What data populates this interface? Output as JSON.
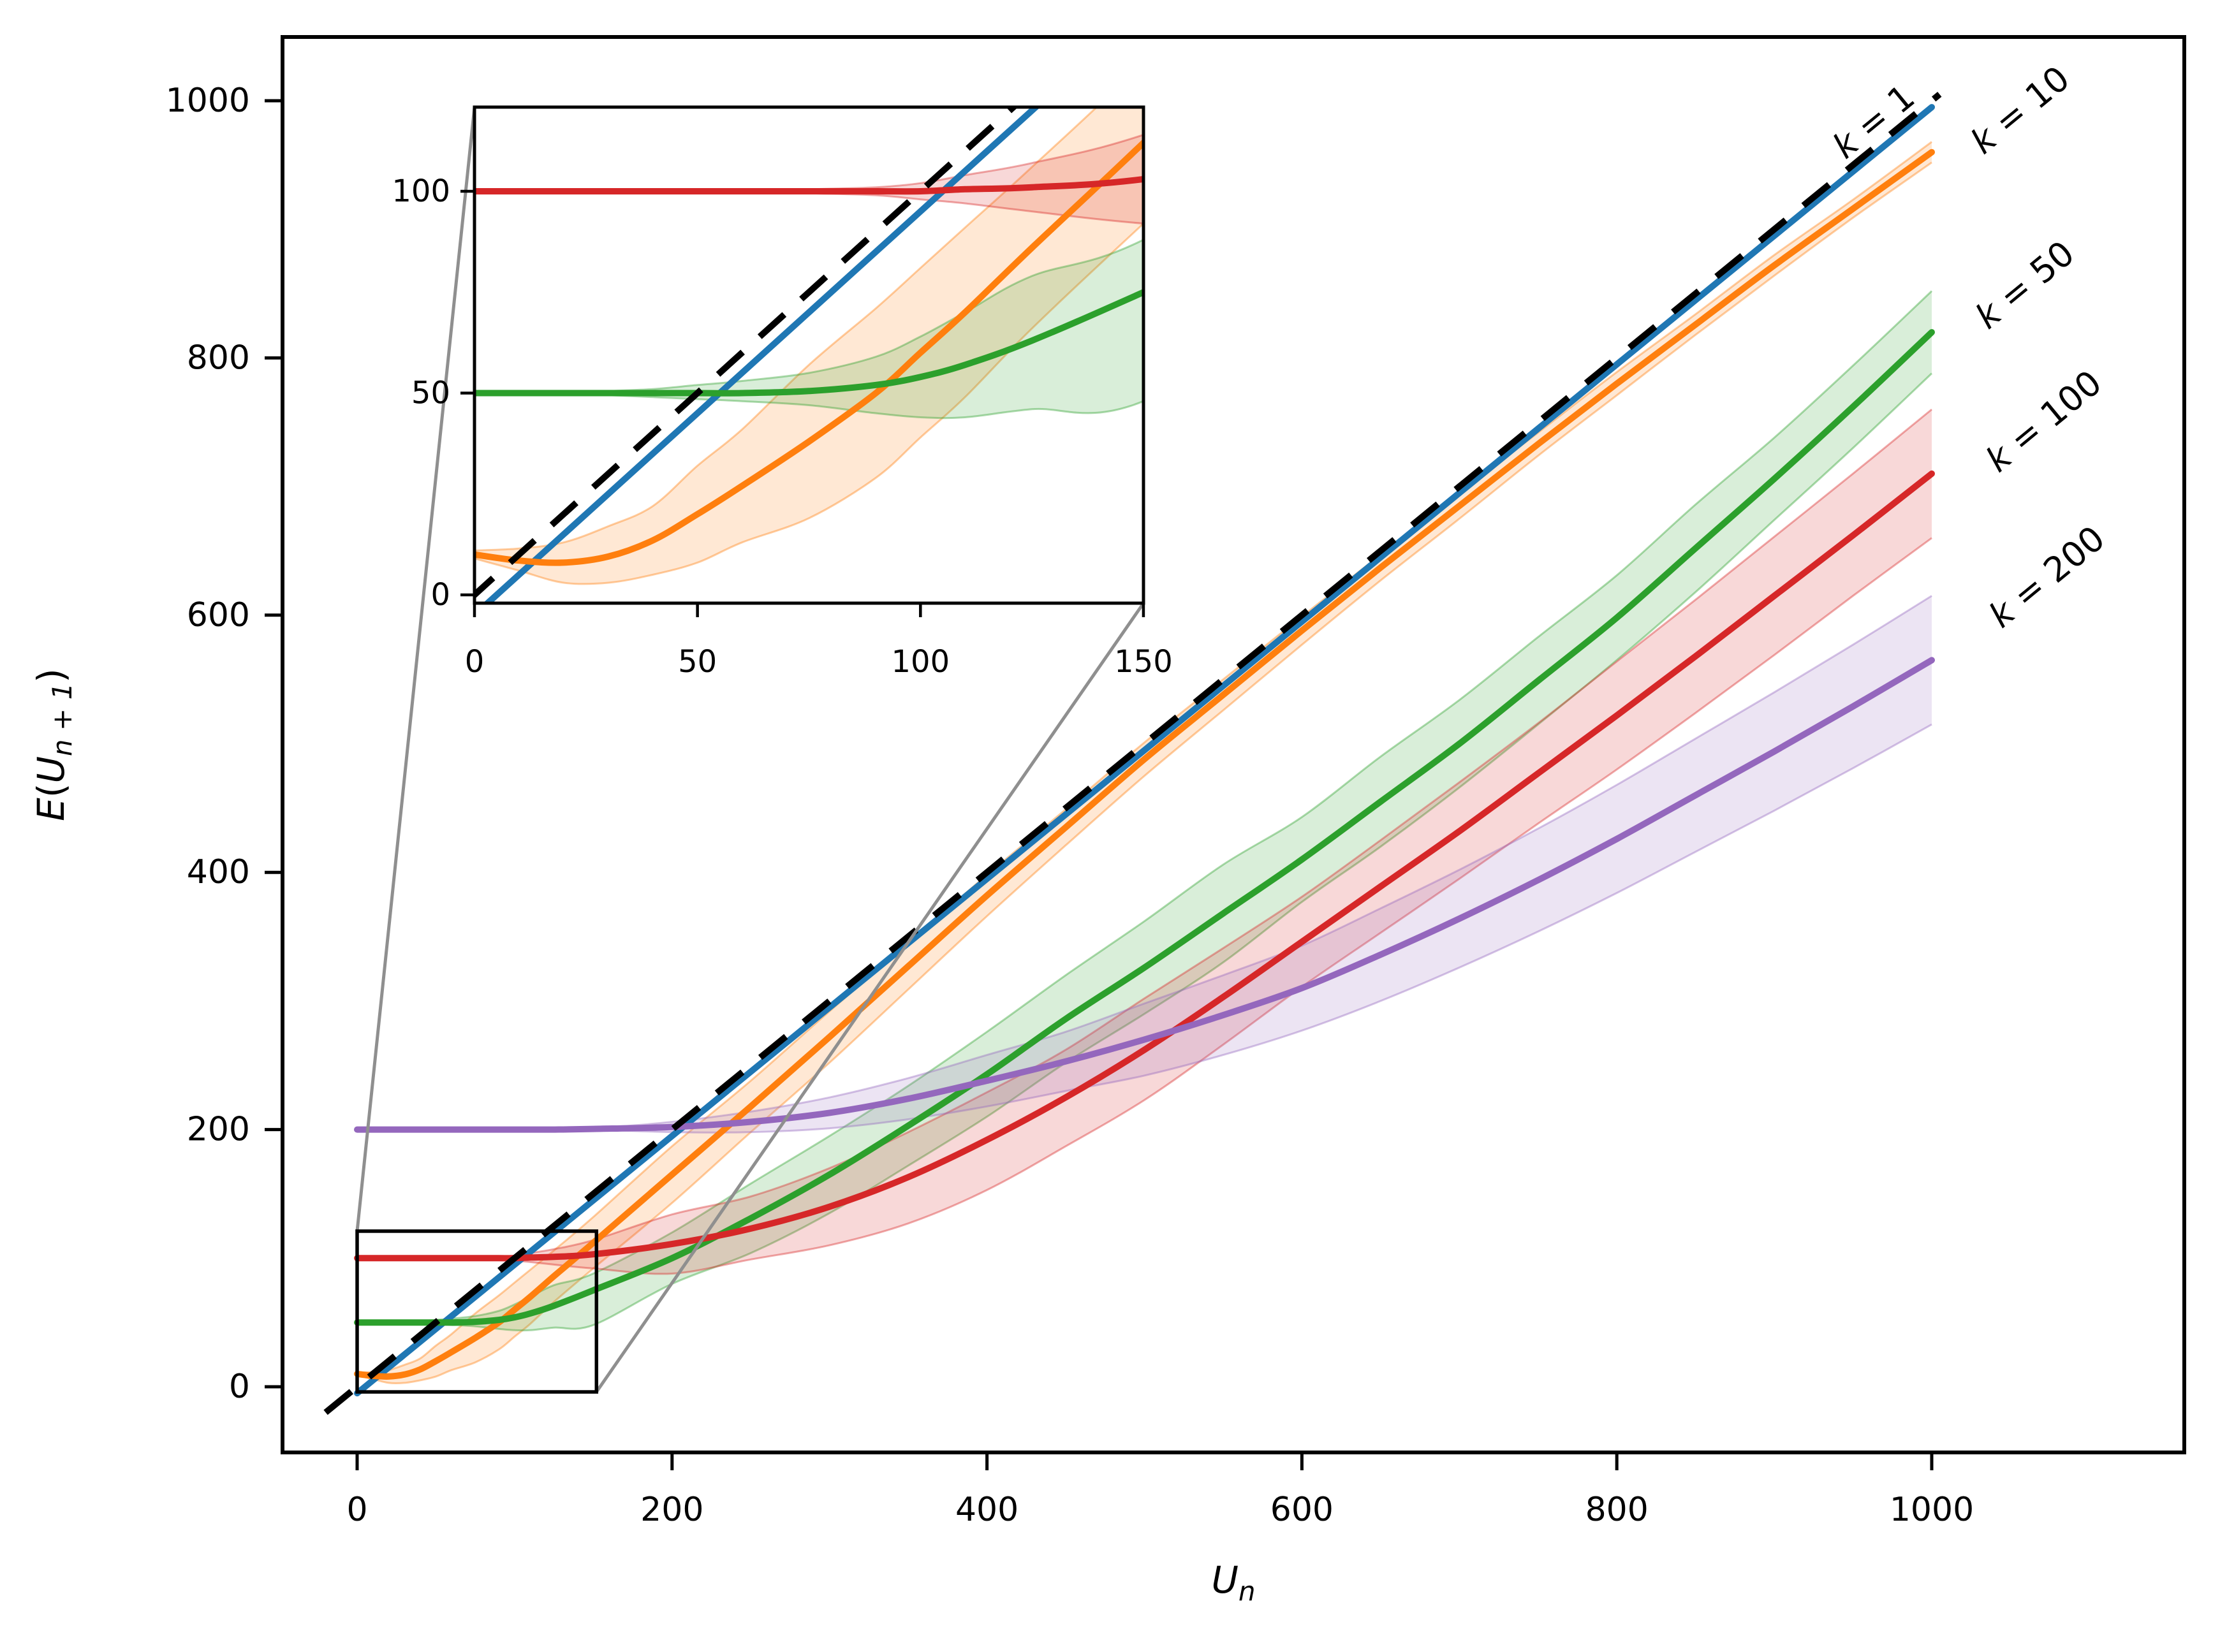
{
  "figure": {
    "kind": "matplotlib-line-figure",
    "background": "#ffffff"
  },
  "chart_data": {
    "type": "line",
    "title": "",
    "xlabel": "U_n",
    "ylabel": "E(U_{n+1})",
    "xlabel_parts": {
      "main": "U",
      "sub": "n"
    },
    "ylabel_parts": {
      "pre_italic": "E",
      "open": "(",
      "mid_italic": "U",
      "sub": "n + 1",
      "close": ")"
    },
    "xlim": [
      -47,
      1161
    ],
    "ylim": [
      -51,
      1048
    ],
    "x_ticks": [
      0,
      200,
      400,
      600,
      800,
      1000
    ],
    "y_ticks": [
      0,
      200,
      400,
      600,
      800,
      1000
    ],
    "grid": false,
    "legend": "inline end-of-line labels, rotated along curves",
    "identity_line": {
      "style": "dashed",
      "color": "#000000",
      "x": [
        -20,
        1005
      ],
      "y": [
        -20,
        1005
      ]
    },
    "x_shared": [
      0,
      10,
      20,
      30,
      40,
      50,
      60,
      75,
      90,
      100,
      110,
      125,
      150,
      200,
      250,
      300,
      350,
      400,
      450,
      500,
      550,
      600,
      650,
      700,
      750,
      800,
      850,
      900,
      950,
      1000
    ],
    "series": [
      {
        "name": "k = 1",
        "k": 1,
        "color": "#1f77b4",
        "x": [
          0,
          1000
        ],
        "y": [
          -5,
          995
        ],
        "band": null
      },
      {
        "name": "k = 10",
        "k": 10,
        "color": "#ff7f0e",
        "x": "shared",
        "y": [
          10,
          8.5,
          8,
          9.5,
          13.5,
          20,
          27,
          38,
          50,
          60,
          70,
          86,
          112,
          165,
          218,
          272,
          327,
          382,
          435,
          488,
          538,
          588,
          637,
          685,
          733,
          780,
          826,
          872,
          916,
          960
        ],
        "band": {
          "lower": [
            9,
            6,
            3,
            3,
            5,
            8,
            13,
            19,
            29,
            39,
            49,
            66,
            92,
            143,
            198,
            252,
            309,
            366,
            421,
            475,
            526,
            577,
            627,
            675,
            724,
            771,
            818,
            864,
            909,
            952
          ],
          "upper": [
            11,
            11.5,
            13,
            17,
            22,
            32,
            41,
            57,
            71,
            81,
            91,
            106,
            132,
            187,
            238,
            292,
            345,
            398,
            449,
            501,
            550,
            599,
            647,
            695,
            742,
            789,
            834,
            880,
            923,
            968
          ]
        }
      },
      {
        "name": "k = 50",
        "k": 50,
        "color": "#2ca02c",
        "x": "shared",
        "y": [
          50,
          50,
          50,
          50,
          50,
          50,
          50,
          50.5,
          52,
          54,
          57,
          63,
          75,
          100,
          131,
          165,
          203,
          243,
          286,
          326,
          368,
          410,
          455,
          500,
          549,
          598,
          652,
          706,
          762,
          820
        ],
        "band": {
          "lower": [
            50,
            50,
            50,
            49.5,
            49,
            48.5,
            48,
            47,
            45,
            44,
            44,
            46,
            48,
            80,
            104,
            135,
            172,
            210,
            252,
            290,
            330,
            377,
            420,
            466,
            515,
            565,
            618,
            674,
            730,
            788
          ],
          "upper": [
            50,
            50,
            50,
            50.5,
            51,
            52,
            53,
            55,
            59,
            64,
            70,
            79,
            88,
            120,
            158,
            195,
            234,
            276,
            320,
            362,
            406,
            443,
            490,
            534,
            583,
            631,
            686,
            738,
            794,
            852
          ]
        }
      },
      {
        "name": "k = 100",
        "k": 100,
        "color": "#d62728",
        "x": "shared",
        "y": [
          100,
          100,
          100,
          100,
          100,
          100,
          100,
          100,
          100,
          100,
          100.5,
          101,
          103,
          111,
          123,
          140,
          163,
          192,
          225,
          262,
          303,
          346,
          389,
          432,
          477,
          522,
          568,
          615,
          662,
          710
        ],
        "band": {
          "lower": [
            100,
            100,
            100,
            100,
            100,
            100,
            100,
            99.5,
            99,
            98,
            97,
            95,
            92,
            88,
            99,
            110,
            127,
            153,
            187,
            223,
            266,
            311,
            353,
            395,
            438,
            480,
            524,
            569,
            615,
            660
          ],
          "upper": [
            100,
            100,
            100,
            100,
            100,
            100,
            100,
            100.5,
            101,
            102,
            104,
            107,
            114,
            134,
            148,
            170,
            198,
            229,
            262,
            302,
            341,
            381,
            425,
            470,
            516,
            564,
            612,
            661,
            710,
            760
          ]
        }
      },
      {
        "name": "k = 200",
        "k": 200,
        "color": "#9467bd",
        "x": "shared",
        "y": [
          200,
          200,
          200,
          200,
          200,
          200,
          200,
          200,
          200,
          200,
          200,
          200,
          200.5,
          202,
          206,
          213,
          224,
          238,
          253,
          270,
          289,
          310,
          336,
          364,
          394,
          426,
          460,
          494,
          529,
          565
        ],
        "band": {
          "lower": [
            200,
            200,
            200,
            200,
            200,
            200,
            200,
            200,
            200,
            200,
            200,
            200,
            200,
            198,
            198,
            201,
            208,
            218,
            230,
            242,
            258,
            277,
            300,
            326,
            354,
            384,
            416,
            448,
            481,
            515
          ],
          "upper": [
            200,
            200,
            200,
            200,
            200,
            200,
            200,
            200,
            200,
            200,
            200,
            200,
            201,
            206,
            214,
            225,
            240,
            258,
            276,
            298,
            320,
            343,
            372,
            402,
            434,
            468,
            504,
            540,
            577,
            615
          ]
        }
      }
    ],
    "end_labels": [
      {
        "text": "k = 1",
        "x_data": 963,
        "y_data": 984,
        "rotation_deg": -39.4
      },
      {
        "text": "k = 10",
        "x_data": 1056,
        "y_data": 993,
        "rotation_deg": -39.4
      },
      {
        "text": "k = 50",
        "x_data": 1059,
        "y_data": 857,
        "rotation_deg": -39.4
      },
      {
        "text": "k = 100",
        "x_data": 1071,
        "y_data": 751,
        "rotation_deg": -39.4
      },
      {
        "text": "k = 200",
        "x_data": 1073,
        "y_data": 630,
        "rotation_deg": -39.4
      }
    ],
    "inset": {
      "xlim": [
        0,
        150
      ],
      "ylim": [
        -2,
        121
      ],
      "x_ticks": [
        0,
        50,
        100,
        150
      ],
      "y_ticks": [
        0,
        50,
        100
      ],
      "grid": false
    },
    "zoom_indicator": {
      "rect_x": [
        0,
        152
      ],
      "rect_y": [
        -4,
        121
      ],
      "connector_color": "#8f8f8f"
    },
    "colors": {
      "k1": "#1f77b4",
      "k10": "#ff7f0e",
      "k50": "#2ca02c",
      "k100": "#d62728",
      "k200": "#9467bd",
      "identity": "#000000",
      "connectors": "#8f8f8f",
      "band_alpha": 0.18,
      "band_edge_alpha": 0.4
    }
  }
}
